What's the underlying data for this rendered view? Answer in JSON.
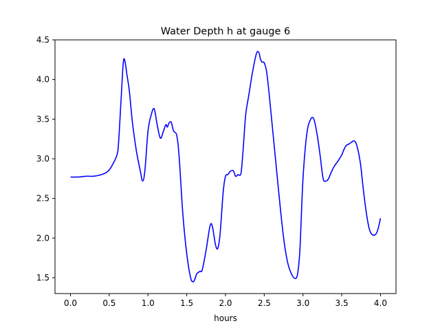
{
  "chart_data": {
    "type": "line",
    "title": "Water Depth h at gauge 6",
    "xlabel": "hours",
    "ylabel": "",
    "xlim": [
      -0.2,
      4.2
    ],
    "ylim": [
      1.3,
      4.5
    ],
    "grid": false,
    "x_ticks": [
      "0.0",
      "0.5",
      "1.0",
      "1.5",
      "2.0",
      "2.5",
      "3.0",
      "3.5",
      "4.0"
    ],
    "y_ticks": [
      "1.5",
      "2.0",
      "2.5",
      "3.0",
      "3.5",
      "4.0",
      "4.5"
    ],
    "series": [
      {
        "color": "#0000ff",
        "x": [
          0.0,
          0.1,
          0.2,
          0.3,
          0.4,
          0.45,
          0.5,
          0.55,
          0.6,
          0.62,
          0.65,
          0.68,
          0.7,
          0.73,
          0.76,
          0.8,
          0.85,
          0.9,
          0.93,
          0.96,
          1.0,
          1.04,
          1.08,
          1.12,
          1.16,
          1.2,
          1.23,
          1.25,
          1.27,
          1.3,
          1.33,
          1.37,
          1.4,
          1.45,
          1.5,
          1.55,
          1.58,
          1.6,
          1.63,
          1.67,
          1.7,
          1.75,
          1.8,
          1.83,
          1.87,
          1.9,
          1.93,
          1.97,
          2.0,
          2.03,
          2.06,
          2.1,
          2.13,
          2.16,
          2.2,
          2.23,
          2.26,
          2.3,
          2.35,
          2.4,
          2.43,
          2.45,
          2.47,
          2.5,
          2.53,
          2.56,
          2.6,
          2.65,
          2.7,
          2.75,
          2.8,
          2.85,
          2.9,
          2.93,
          2.96,
          3.0,
          3.05,
          3.1,
          3.14,
          3.18,
          3.22,
          3.26,
          3.3,
          3.33,
          3.36,
          3.4,
          3.45,
          3.5,
          3.53,
          3.56,
          3.6,
          3.64,
          3.67,
          3.7,
          3.74,
          3.78,
          3.82,
          3.86,
          3.9,
          3.94,
          3.97,
          4.0
        ],
        "y": [
          2.77,
          2.77,
          2.78,
          2.78,
          2.8,
          2.82,
          2.86,
          2.94,
          3.05,
          3.2,
          3.7,
          4.2,
          4.24,
          4.05,
          3.85,
          3.45,
          3.1,
          2.85,
          2.72,
          2.85,
          3.35,
          3.55,
          3.63,
          3.42,
          3.26,
          3.35,
          3.43,
          3.4,
          3.45,
          3.46,
          3.35,
          3.3,
          3.05,
          2.3,
          1.8,
          1.5,
          1.45,
          1.47,
          1.55,
          1.58,
          1.6,
          1.85,
          2.15,
          2.15,
          1.92,
          1.87,
          2.05,
          2.58,
          2.78,
          2.8,
          2.84,
          2.85,
          2.78,
          2.8,
          2.82,
          3.15,
          3.55,
          3.8,
          4.1,
          4.33,
          4.34,
          4.26,
          4.22,
          4.21,
          4.1,
          3.85,
          3.45,
          2.95,
          2.45,
          2.0,
          1.7,
          1.55,
          1.49,
          1.55,
          1.85,
          2.75,
          3.32,
          3.5,
          3.5,
          3.32,
          3.05,
          2.75,
          2.72,
          2.75,
          2.82,
          2.9,
          2.97,
          3.05,
          3.12,
          3.17,
          3.19,
          3.22,
          3.22,
          3.15,
          2.95,
          2.6,
          2.3,
          2.1,
          2.04,
          2.05,
          2.12,
          2.25
        ]
      }
    ]
  }
}
